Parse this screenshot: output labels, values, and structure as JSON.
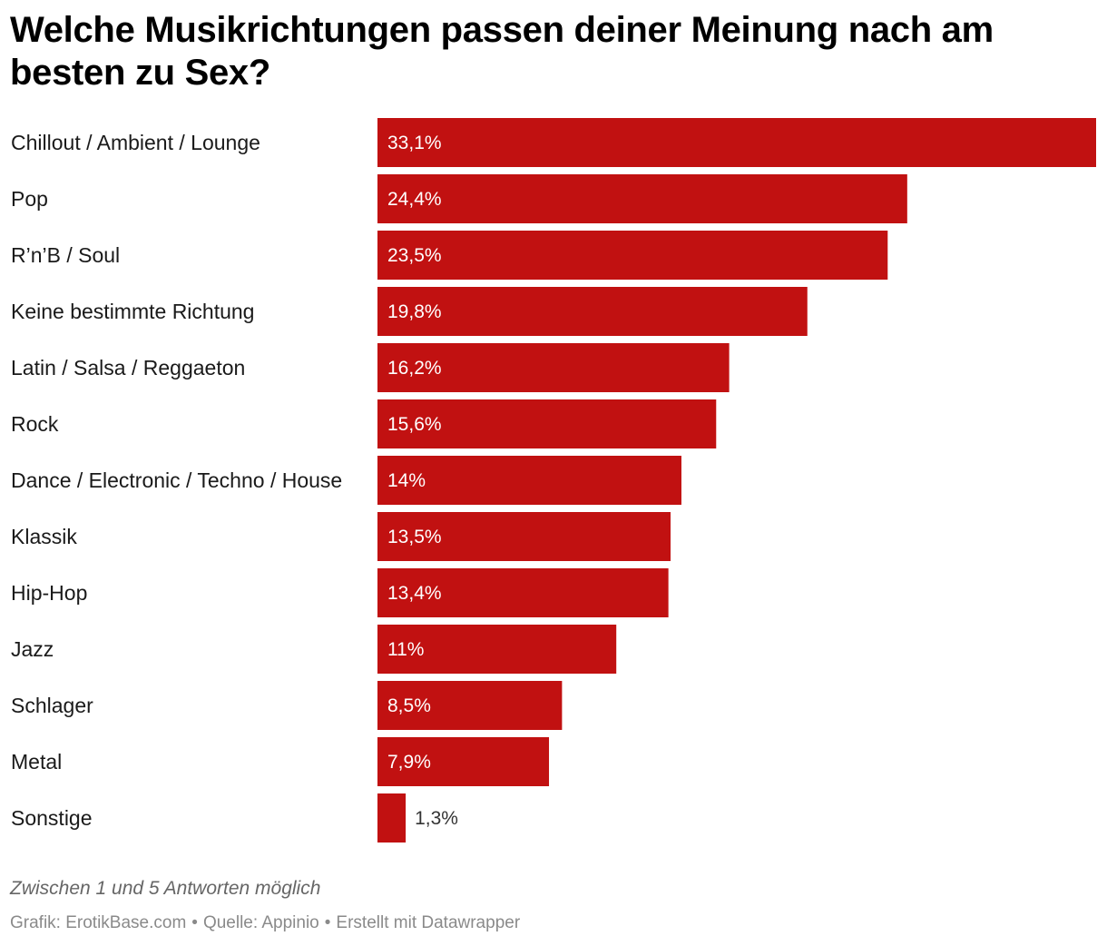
{
  "chart_data": {
    "type": "bar",
    "orientation": "horizontal",
    "title": "Welche Musikrichtungen passen deiner Meinung nach am besten zu Sex?",
    "categories": [
      "Chillout / Ambient / Lounge",
      "Pop",
      "R’n’B / Soul",
      "Keine bestimmte Richtung",
      "Latin / Salsa / Reggaeton",
      "Rock",
      "Dance / Electronic / Techno / House",
      "Klassik",
      "Hip-Hop",
      "Jazz",
      "Schlager",
      "Metal",
      "Sonstige"
    ],
    "values": [
      33.1,
      24.4,
      23.5,
      19.8,
      16.2,
      15.6,
      14,
      13.5,
      13.4,
      11,
      8.5,
      7.9,
      1.3
    ],
    "value_labels": [
      "33,1%",
      "24,4%",
      "23,5%",
      "19,8%",
      "16,2%",
      "15,6%",
      "14%",
      "13,5%",
      "13,4%",
      "11%",
      "8,5%",
      "7,9%",
      "1,3%"
    ],
    "xlim": [
      0,
      33.1
    ],
    "unit": "%",
    "bar_color": "#c11111",
    "label_inside_color": "#ffffff",
    "label_outside_color": "#333333",
    "xlabel": "",
    "ylabel": ""
  },
  "notes": {
    "description": "Zwischen 1 und 5 Antworten möglich"
  },
  "footer": {
    "graphic": "Grafik: ErotikBase.com",
    "source": "Quelle: Appinio",
    "created": "Erstellt mit Datawrapper",
    "separator": "•"
  }
}
